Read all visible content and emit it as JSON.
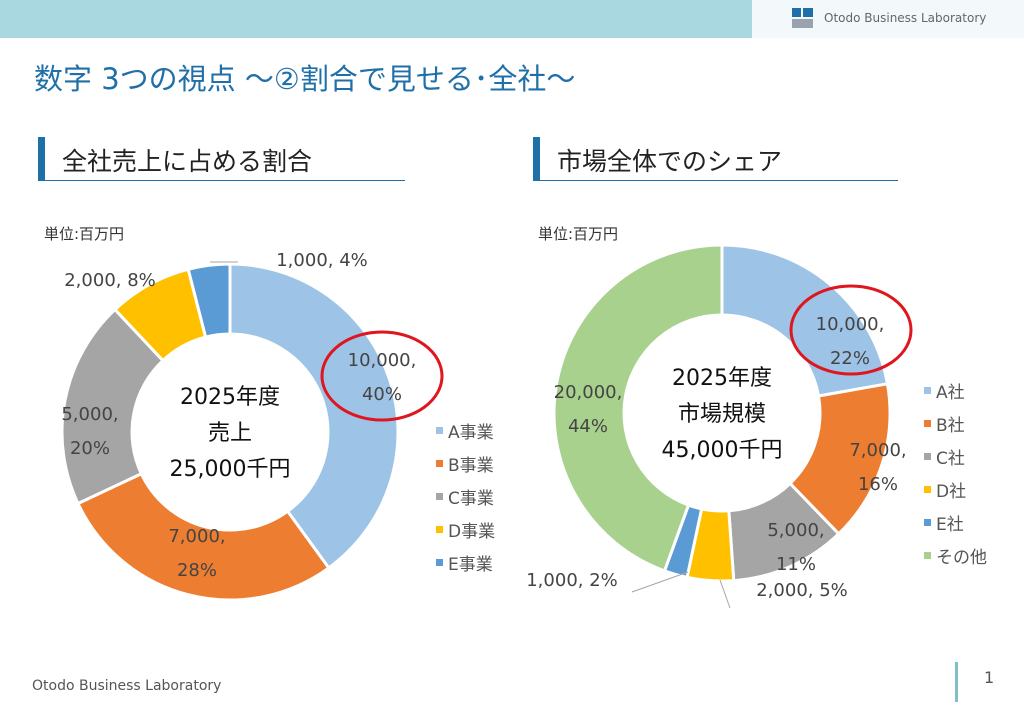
{
  "header": {
    "brand": "Otodo Business Laboratory"
  },
  "page_title": "数字 3つの視点 〜②割合で見せる･全社〜",
  "footer": {
    "brand": "Otodo Business Laboratory",
    "page_number": "1"
  },
  "colors": {
    "accent": "#1f6fa8",
    "highlight": "#e0161f"
  },
  "chart_data": [
    {
      "type": "pie",
      "title": "全社売上に占める割合",
      "unit": "単位:百万円",
      "center_label": [
        "2025年度",
        "売上",
        "25,000千円"
      ],
      "series": [
        {
          "name": "A事業",
          "value": 10000,
          "percent": 40,
          "color": "#9dc3e6",
          "label_lines": [
            "10,000,",
            "40%"
          ],
          "highlighted": true
        },
        {
          "name": "B事業",
          "value": 7000,
          "percent": 28,
          "color": "#ed7d31",
          "label_lines": [
            "7,000,",
            "28%"
          ]
        },
        {
          "name": "C事業",
          "value": 5000,
          "percent": 20,
          "color": "#a5a5a5",
          "label_lines": [
            "5,000,",
            "20%"
          ]
        },
        {
          "name": "D事業",
          "value": 2000,
          "percent": 8,
          "color": "#ffc000",
          "label_lines": [
            "2,000, 8%"
          ]
        },
        {
          "name": "E事業",
          "value": 1000,
          "percent": 4,
          "color": "#5b9bd5",
          "label_lines": [
            "1,000, 4%"
          ]
        }
      ],
      "legend": "right"
    },
    {
      "type": "pie",
      "title": "市場全体でのシェア",
      "unit": "単位:百万円",
      "center_label": [
        "2025年度",
        "市場規模",
        "45,000千円"
      ],
      "series": [
        {
          "name": "A社",
          "value": 10000,
          "percent": 22,
          "color": "#9dc3e6",
          "label_lines": [
            "10,000,",
            "22%"
          ],
          "highlighted": true
        },
        {
          "name": "B社",
          "value": 7000,
          "percent": 16,
          "color": "#ed7d31",
          "label_lines": [
            "7,000,",
            "16%"
          ]
        },
        {
          "name": "C社",
          "value": 5000,
          "percent": 11,
          "color": "#a5a5a5",
          "label_lines": [
            "5,000,",
            "11%"
          ]
        },
        {
          "name": "D社",
          "value": 2000,
          "percent": 5,
          "color": "#ffc000",
          "label_lines": [
            "2,000, 5%"
          ]
        },
        {
          "name": "E社",
          "value": 1000,
          "percent": 2,
          "color": "#5b9bd5",
          "label_lines": [
            "1,000, 2%"
          ]
        },
        {
          "name": "その他",
          "value": 20000,
          "percent": 44,
          "color": "#a9d18e",
          "label_lines": [
            "20,000,",
            "44%"
          ]
        }
      ],
      "legend": "right"
    }
  ]
}
